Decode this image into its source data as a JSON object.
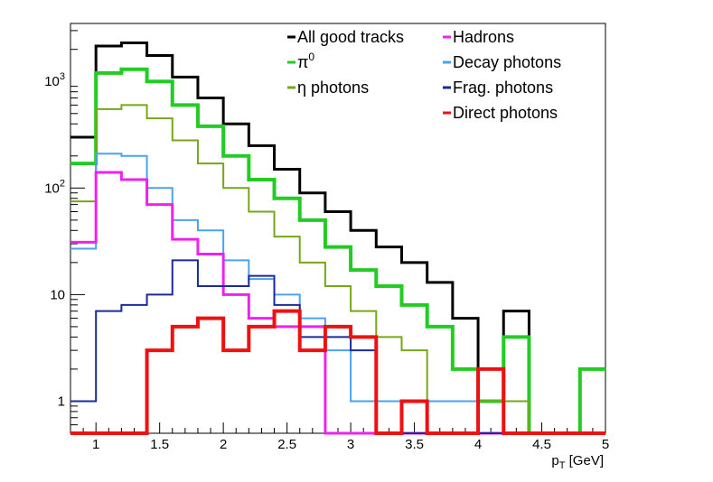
{
  "chart_data": {
    "type": "step-histogram",
    "title": "",
    "xlabel": "p",
    "xlabel_sub": "T",
    "xlabel_unit": " [GeV]",
    "ylabel": "",
    "xlim": [
      0.8,
      5.0
    ],
    "ylim": [
      0.5,
      3500
    ],
    "yscale": "log",
    "bin_edges": [
      0.8,
      1.0,
      1.2,
      1.4,
      1.6,
      1.8,
      2.0,
      2.2,
      2.4,
      2.6,
      2.8,
      3.0,
      3.2,
      3.4,
      3.6,
      3.8,
      4.0,
      4.2,
      4.4,
      4.6,
      4.8,
      5.0
    ],
    "x_ticks": [
      {
        "value": 1.0,
        "label": "1"
      },
      {
        "value": 1.5,
        "label": "1.5"
      },
      {
        "value": 2.0,
        "label": "2"
      },
      {
        "value": 2.5,
        "label": "2.5"
      },
      {
        "value": 3.0,
        "label": "3"
      },
      {
        "value": 3.5,
        "label": "3.5"
      },
      {
        "value": 4.0,
        "label": "4"
      },
      {
        "value": 4.5,
        "label": "4.5"
      },
      {
        "value": 5.0,
        "label": "5"
      }
    ],
    "y_ticks": [
      {
        "value": 1,
        "label": "1"
      },
      {
        "value": 10,
        "label": "10"
      },
      {
        "value": 100,
        "base": "10",
        "exp": "2"
      },
      {
        "value": 1000,
        "base": "10",
        "exp": "3"
      }
    ],
    "legend": [
      {
        "label": "All good tracks",
        "series": 0
      },
      {
        "label": "π",
        "sup": "0",
        "series": 1
      },
      {
        "label": "η photons",
        "series": 2
      },
      {
        "label": "Hadrons",
        "series": 4
      },
      {
        "label": "Decay photons",
        "series": 3
      },
      {
        "label": "Frag. photons",
        "series": 5
      },
      {
        "label": "Direct photons",
        "series": 6
      }
    ],
    "series": [
      {
        "name": "All good tracks",
        "color": "#000000",
        "values": [
          300,
          2150,
          2300,
          1750,
          1100,
          700,
          400,
          250,
          150,
          90,
          60,
          40,
          28,
          20,
          13,
          6,
          0,
          7,
          0,
          0,
          0
        ]
      },
      {
        "name": "π0",
        "color": "#22cc22",
        "values": [
          170,
          1200,
          1300,
          1000,
          600,
          380,
          200,
          120,
          80,
          50,
          28,
          17,
          12,
          8,
          5,
          2,
          1,
          4,
          0,
          0,
          2
        ]
      },
      {
        "name": "η photons",
        "color": "#77a61a",
        "values": [
          75,
          550,
          600,
          450,
          280,
          170,
          100,
          60,
          35,
          20,
          12,
          7,
          4,
          3,
          1,
          1,
          1,
          1,
          0,
          0,
          0
        ]
      },
      {
        "name": "Decay photons",
        "color": "#4aa3ee",
        "values": [
          27,
          210,
          200,
          100,
          50,
          40,
          21,
          14,
          10,
          6,
          3,
          1,
          1,
          1,
          1,
          1,
          0,
          0,
          0,
          0,
          0
        ]
      },
      {
        "name": "Hadrons",
        "color": "#ee22ee",
        "values": [
          31,
          140,
          120,
          70,
          33,
          24,
          10,
          6,
          5,
          5,
          0,
          0,
          0,
          0,
          0,
          0,
          0,
          0,
          0,
          0,
          0
        ]
      },
      {
        "name": "Frag. photons",
        "color": "#1a2a99",
        "values": [
          1,
          7,
          8,
          10,
          21,
          12,
          12,
          15,
          8,
          4,
          4,
          3,
          0,
          0,
          0,
          0,
          0,
          0,
          0,
          0,
          0
        ]
      },
      {
        "name": "Direct photons",
        "color": "#ee1111",
        "values": [
          0,
          0,
          0,
          3,
          5,
          6,
          3,
          5,
          7,
          3,
          5,
          4,
          0,
          1,
          0,
          0,
          2,
          0,
          0,
          0,
          0
        ]
      }
    ]
  }
}
